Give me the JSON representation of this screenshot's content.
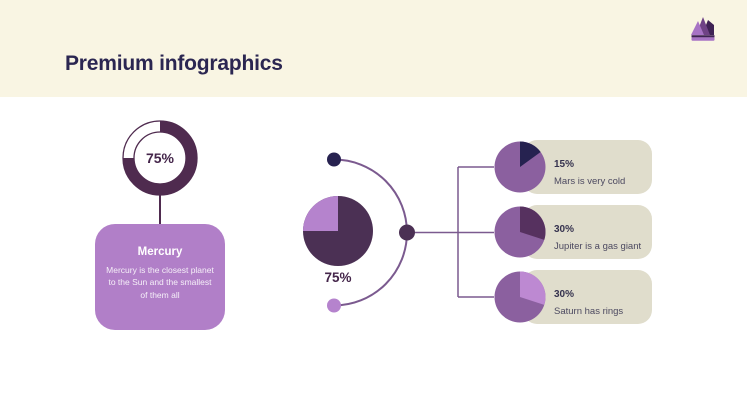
{
  "slide": {
    "title": "Premium infographics",
    "title_color": "#2b2651",
    "header_color": "#f9f5e3",
    "background_color": "#ffffff"
  },
  "crown": {
    "left_color": "#a773c4",
    "mid_color": "#6f4285",
    "right_color": "#3f2254"
  },
  "donut": {
    "fraction": 0.75,
    "value_label": "75%",
    "color": "#4f2b4f",
    "text_color": "#44254a"
  },
  "mercury_card": {
    "title": "Mercury",
    "description": "Mercury is the closest planet to the Sun and the smallest of them all",
    "background_color": "#b17fc8",
    "text_color": "#ffffff"
  },
  "center_pie": {
    "fraction": 0.25,
    "direction": "ccw",
    "base_color": "#4b3054",
    "slice_color": "#b583cd",
    "value_label": "75%",
    "text_color": "#44254a"
  },
  "connector": {
    "color": "#7b5a8f",
    "dot_top_color": "#272250",
    "dot_mid_color": "#4b3054",
    "dot_bottom_color": "#b583cd"
  },
  "cards": {
    "background_color": "#e0ddcc",
    "percent_color": "#35324e",
    "label_color": "#4c4960"
  },
  "rows": [
    {
      "percent": "15%",
      "label": "Mars is very cold",
      "pie": {
        "fraction": 0.15,
        "direction": "cw",
        "base_color": "#8b609f",
        "slice_color": "#262250"
      }
    },
    {
      "percent": "30%",
      "label": "Jupiter is a gas giant",
      "pie": {
        "fraction": 0.3,
        "direction": "cw",
        "base_color": "#8b609f",
        "slice_color": "#56315f"
      }
    },
    {
      "percent": "30%",
      "label": "Saturn has rings",
      "pie": {
        "fraction": 0.3,
        "direction": "cw",
        "base_color": "#8b609f",
        "slice_color": "#bd89d2"
      }
    }
  ],
  "chart_data": [
    {
      "type": "pie",
      "subtype": "donut",
      "label": "Mercury",
      "value_pct": 75,
      "caption": "Mercury is the closest planet to the Sun and the smallest of them all"
    },
    {
      "type": "pie",
      "subtype": "pie",
      "label": "center-pie",
      "value_pct": 75
    },
    {
      "type": "pie",
      "subtype": "pie",
      "label": "Mars is very cold",
      "value_pct": 15
    },
    {
      "type": "pie",
      "subtype": "pie",
      "label": "Jupiter is a gas giant",
      "value_pct": 30
    },
    {
      "type": "pie",
      "subtype": "pie",
      "label": "Saturn has rings",
      "value_pct": 30
    }
  ]
}
